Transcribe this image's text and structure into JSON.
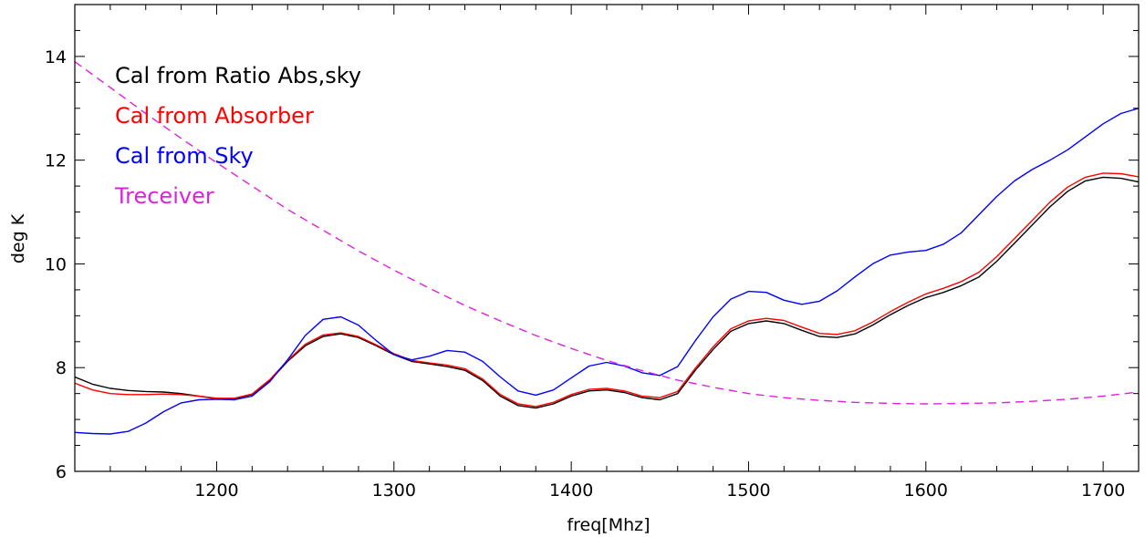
{
  "chart_data": {
    "type": "line",
    "title": "",
    "xlabel": "freq[Mhz]",
    "ylabel": "deg K",
    "xlim": [
      1120,
      1720
    ],
    "ylim": [
      6,
      15
    ],
    "x_ticks": [
      1200,
      1300,
      1400,
      1500,
      1600,
      1700
    ],
    "y_ticks": [
      6,
      8,
      10,
      12,
      14
    ],
    "x_minor_step": 20,
    "y_minor_step": 0.5,
    "grid": false,
    "legend_position": "top-left",
    "series": [
      {
        "name": "Cal from Ratio Abs,sky",
        "color": "#000000",
        "dash": "solid",
        "points": [
          [
            1120,
            7.82
          ],
          [
            1130,
            7.68
          ],
          [
            1140,
            7.6
          ],
          [
            1150,
            7.56
          ],
          [
            1160,
            7.54
          ],
          [
            1170,
            7.53
          ],
          [
            1180,
            7.5
          ],
          [
            1190,
            7.45
          ],
          [
            1200,
            7.4
          ],
          [
            1210,
            7.4
          ],
          [
            1220,
            7.48
          ],
          [
            1230,
            7.75
          ],
          [
            1240,
            8.12
          ],
          [
            1250,
            8.42
          ],
          [
            1260,
            8.6
          ],
          [
            1270,
            8.65
          ],
          [
            1280,
            8.58
          ],
          [
            1290,
            8.42
          ],
          [
            1300,
            8.25
          ],
          [
            1310,
            8.12
          ],
          [
            1320,
            8.07
          ],
          [
            1330,
            8.02
          ],
          [
            1340,
            7.95
          ],
          [
            1350,
            7.75
          ],
          [
            1360,
            7.45
          ],
          [
            1370,
            7.27
          ],
          [
            1380,
            7.22
          ],
          [
            1390,
            7.3
          ],
          [
            1400,
            7.45
          ],
          [
            1410,
            7.55
          ],
          [
            1420,
            7.57
          ],
          [
            1430,
            7.52
          ],
          [
            1440,
            7.42
          ],
          [
            1450,
            7.38
          ],
          [
            1460,
            7.5
          ],
          [
            1470,
            7.95
          ],
          [
            1480,
            8.35
          ],
          [
            1490,
            8.7
          ],
          [
            1500,
            8.85
          ],
          [
            1510,
            8.9
          ],
          [
            1520,
            8.85
          ],
          [
            1530,
            8.72
          ],
          [
            1540,
            8.6
          ],
          [
            1550,
            8.58
          ],
          [
            1560,
            8.65
          ],
          [
            1570,
            8.82
          ],
          [
            1580,
            9.02
          ],
          [
            1590,
            9.2
          ],
          [
            1600,
            9.35
          ],
          [
            1610,
            9.45
          ],
          [
            1620,
            9.58
          ],
          [
            1630,
            9.75
          ],
          [
            1640,
            10.05
          ],
          [
            1650,
            10.4
          ],
          [
            1660,
            10.75
          ],
          [
            1670,
            11.1
          ],
          [
            1680,
            11.4
          ],
          [
            1690,
            11.6
          ],
          [
            1700,
            11.67
          ],
          [
            1710,
            11.65
          ],
          [
            1720,
            11.58
          ]
        ]
      },
      {
        "name": "Cal from Absorber",
        "color": "#ff0000",
        "dash": "solid",
        "points": [
          [
            1120,
            7.7
          ],
          [
            1130,
            7.57
          ],
          [
            1140,
            7.5
          ],
          [
            1150,
            7.48
          ],
          [
            1160,
            7.48
          ],
          [
            1170,
            7.49
          ],
          [
            1180,
            7.48
          ],
          [
            1190,
            7.45
          ],
          [
            1200,
            7.41
          ],
          [
            1210,
            7.41
          ],
          [
            1220,
            7.49
          ],
          [
            1230,
            7.77
          ],
          [
            1240,
            8.14
          ],
          [
            1250,
            8.45
          ],
          [
            1260,
            8.63
          ],
          [
            1270,
            8.67
          ],
          [
            1280,
            8.6
          ],
          [
            1290,
            8.44
          ],
          [
            1300,
            8.27
          ],
          [
            1310,
            8.14
          ],
          [
            1320,
            8.09
          ],
          [
            1330,
            8.05
          ],
          [
            1340,
            7.98
          ],
          [
            1350,
            7.78
          ],
          [
            1360,
            7.48
          ],
          [
            1370,
            7.3
          ],
          [
            1380,
            7.25
          ],
          [
            1390,
            7.33
          ],
          [
            1400,
            7.48
          ],
          [
            1410,
            7.58
          ],
          [
            1420,
            7.6
          ],
          [
            1430,
            7.55
          ],
          [
            1440,
            7.45
          ],
          [
            1450,
            7.42
          ],
          [
            1460,
            7.54
          ],
          [
            1470,
            7.99
          ],
          [
            1480,
            8.4
          ],
          [
            1490,
            8.75
          ],
          [
            1500,
            8.9
          ],
          [
            1510,
            8.95
          ],
          [
            1520,
            8.91
          ],
          [
            1530,
            8.78
          ],
          [
            1540,
            8.66
          ],
          [
            1550,
            8.64
          ],
          [
            1560,
            8.71
          ],
          [
            1570,
            8.88
          ],
          [
            1580,
            9.08
          ],
          [
            1590,
            9.26
          ],
          [
            1600,
            9.42
          ],
          [
            1610,
            9.53
          ],
          [
            1620,
            9.66
          ],
          [
            1630,
            9.84
          ],
          [
            1640,
            10.14
          ],
          [
            1650,
            10.49
          ],
          [
            1660,
            10.84
          ],
          [
            1670,
            11.19
          ],
          [
            1680,
            11.48
          ],
          [
            1690,
            11.67
          ],
          [
            1700,
            11.75
          ],
          [
            1710,
            11.74
          ],
          [
            1720,
            11.68
          ]
        ]
      },
      {
        "name": "Cal from Sky",
        "color": "#0000ff",
        "dash": "solid",
        "points": [
          [
            1120,
            6.75
          ],
          [
            1130,
            6.73
          ],
          [
            1140,
            6.72
          ],
          [
            1150,
            6.77
          ],
          [
            1160,
            6.93
          ],
          [
            1170,
            7.15
          ],
          [
            1180,
            7.32
          ],
          [
            1190,
            7.38
          ],
          [
            1200,
            7.39
          ],
          [
            1210,
            7.38
          ],
          [
            1220,
            7.45
          ],
          [
            1230,
            7.73
          ],
          [
            1240,
            8.15
          ],
          [
            1250,
            8.62
          ],
          [
            1260,
            8.93
          ],
          [
            1270,
            8.98
          ],
          [
            1280,
            8.82
          ],
          [
            1290,
            8.52
          ],
          [
            1300,
            8.25
          ],
          [
            1310,
            8.15
          ],
          [
            1320,
            8.22
          ],
          [
            1330,
            8.33
          ],
          [
            1340,
            8.3
          ],
          [
            1350,
            8.12
          ],
          [
            1360,
            7.82
          ],
          [
            1370,
            7.55
          ],
          [
            1380,
            7.47
          ],
          [
            1390,
            7.57
          ],
          [
            1400,
            7.8
          ],
          [
            1410,
            8.03
          ],
          [
            1420,
            8.1
          ],
          [
            1430,
            8.03
          ],
          [
            1440,
            7.9
          ],
          [
            1450,
            7.85
          ],
          [
            1460,
            8.02
          ],
          [
            1470,
            8.52
          ],
          [
            1480,
            8.98
          ],
          [
            1490,
            9.32
          ],
          [
            1500,
            9.47
          ],
          [
            1510,
            9.45
          ],
          [
            1520,
            9.3
          ],
          [
            1530,
            9.22
          ],
          [
            1540,
            9.28
          ],
          [
            1550,
            9.48
          ],
          [
            1560,
            9.75
          ],
          [
            1570,
            10.0
          ],
          [
            1580,
            10.17
          ],
          [
            1590,
            10.23
          ],
          [
            1600,
            10.26
          ],
          [
            1610,
            10.38
          ],
          [
            1620,
            10.6
          ],
          [
            1630,
            10.95
          ],
          [
            1640,
            11.3
          ],
          [
            1650,
            11.6
          ],
          [
            1660,
            11.82
          ],
          [
            1670,
            12.0
          ],
          [
            1680,
            12.2
          ],
          [
            1690,
            12.45
          ],
          [
            1700,
            12.7
          ],
          [
            1710,
            12.9
          ],
          [
            1720,
            13.0
          ]
        ]
      },
      {
        "name": "Treceiver",
        "color": "#dd22dd",
        "dash": "dashed",
        "points": [
          [
            1120,
            13.9
          ],
          [
            1140,
            13.4
          ],
          [
            1160,
            12.9
          ],
          [
            1180,
            12.42
          ],
          [
            1200,
            11.95
          ],
          [
            1220,
            11.5
          ],
          [
            1240,
            11.05
          ],
          [
            1260,
            10.65
          ],
          [
            1280,
            10.25
          ],
          [
            1300,
            9.88
          ],
          [
            1320,
            9.53
          ],
          [
            1340,
            9.2
          ],
          [
            1360,
            8.9
          ],
          [
            1380,
            8.62
          ],
          [
            1400,
            8.37
          ],
          [
            1420,
            8.14
          ],
          [
            1440,
            7.94
          ],
          [
            1460,
            7.76
          ],
          [
            1480,
            7.62
          ],
          [
            1500,
            7.5
          ],
          [
            1520,
            7.42
          ],
          [
            1540,
            7.37
          ],
          [
            1560,
            7.33
          ],
          [
            1580,
            7.31
          ],
          [
            1600,
            7.3
          ],
          [
            1620,
            7.31
          ],
          [
            1640,
            7.32
          ],
          [
            1660,
            7.35
          ],
          [
            1680,
            7.39
          ],
          [
            1700,
            7.45
          ],
          [
            1720,
            7.53
          ]
        ]
      }
    ]
  }
}
